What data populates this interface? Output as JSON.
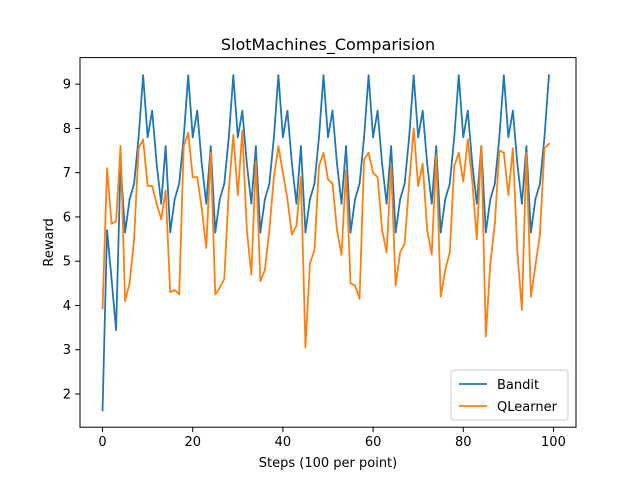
{
  "chart_data": {
    "type": "line",
    "title": "SlotMachines_Comparision",
    "xlabel": "Steps (100 per point)",
    "ylabel": "Reward",
    "xlim": [
      -5,
      105
    ],
    "ylim": [
      1.25,
      9.6
    ],
    "xticks": [
      0,
      20,
      40,
      60,
      80,
      100
    ],
    "yticks": [
      2,
      3,
      4,
      5,
      6,
      7,
      8,
      9
    ],
    "grid": false,
    "legend_position": "lower-right",
    "x": [
      0,
      1,
      2,
      3,
      4,
      5,
      6,
      7,
      8,
      9,
      10,
      11,
      12,
      13,
      14,
      15,
      16,
      17,
      18,
      19,
      20,
      21,
      22,
      23,
      24,
      25,
      26,
      27,
      28,
      29,
      30,
      31,
      32,
      33,
      34,
      35,
      36,
      37,
      38,
      39,
      40,
      41,
      42,
      43,
      44,
      45,
      46,
      47,
      48,
      49,
      50,
      51,
      52,
      53,
      54,
      55,
      56,
      57,
      58,
      59,
      60,
      61,
      62,
      63,
      64,
      65,
      66,
      67,
      68,
      69,
      70,
      71,
      72,
      73,
      74,
      75,
      76,
      77,
      78,
      79,
      80,
      81,
      82,
      83,
      84,
      85,
      86,
      87,
      88,
      89,
      90,
      91,
      92,
      93,
      94,
      95,
      96,
      97,
      98,
      99
    ],
    "series": [
      {
        "name": "Bandit",
        "color": "#1f77b4",
        "values": [
          1.63,
          5.7,
          4.6,
          3.45,
          7.2,
          5.65,
          6.4,
          6.75,
          7.8,
          9.2,
          7.8,
          8.4,
          7.2,
          6.3,
          7.6,
          5.65,
          6.4,
          6.75,
          7.8,
          9.2,
          7.8,
          8.4,
          7.2,
          6.3,
          7.6,
          5.65,
          6.4,
          6.75,
          7.8,
          9.2,
          7.8,
          8.4,
          7.2,
          6.3,
          7.6,
          5.65,
          6.4,
          6.75,
          7.8,
          9.2,
          7.8,
          8.4,
          7.2,
          6.3,
          7.6,
          5.65,
          6.4,
          6.75,
          7.8,
          9.2,
          7.8,
          8.4,
          7.2,
          6.3,
          7.6,
          5.65,
          6.4,
          6.75,
          7.8,
          9.2,
          7.8,
          8.4,
          7.2,
          6.3,
          7.6,
          5.65,
          6.4,
          6.75,
          7.8,
          9.2,
          7.8,
          8.4,
          7.2,
          6.3,
          7.6,
          5.65,
          6.4,
          6.75,
          7.8,
          9.2,
          7.8,
          8.4,
          7.2,
          6.3,
          7.6,
          5.65,
          6.4,
          6.75,
          7.8,
          9.2,
          7.8,
          8.4,
          7.2,
          6.3,
          7.6,
          5.65,
          6.4,
          6.75,
          7.8,
          9.2
        ]
      },
      {
        "name": "QLearner",
        "color": "#ff7f0e",
        "values": [
          3.93,
          7.1,
          5.85,
          5.9,
          7.6,
          4.1,
          4.5,
          5.5,
          7.55,
          7.75,
          6.7,
          6.7,
          6.3,
          5.95,
          6.6,
          4.3,
          4.35,
          4.25,
          7.6,
          7.9,
          6.9,
          6.9,
          6.2,
          5.3,
          7.45,
          4.25,
          4.4,
          4.6,
          6.6,
          7.85,
          6.5,
          7.95,
          5.7,
          4.7,
          7.25,
          4.55,
          4.8,
          5.7,
          6.9,
          7.6,
          7.0,
          6.4,
          5.6,
          5.8,
          6.9,
          3.05,
          4.95,
          5.25,
          7.15,
          7.45,
          6.85,
          6.75,
          5.7,
          5.15,
          7.05,
          4.5,
          4.45,
          4.15,
          7.3,
          7.45,
          7.0,
          6.9,
          5.7,
          5.2,
          7.15,
          4.45,
          5.2,
          5.4,
          6.75,
          8.0,
          6.7,
          7.2,
          5.7,
          5.15,
          7.4,
          4.2,
          4.8,
          5.2,
          7.15,
          7.45,
          6.8,
          7.75,
          6.8,
          5.5,
          7.6,
          3.3,
          4.95,
          5.85,
          7.5,
          7.45,
          6.5,
          7.55,
          5.2,
          3.9,
          7.45,
          4.2,
          4.9,
          5.6,
          7.55,
          7.65
        ]
      }
    ]
  }
}
